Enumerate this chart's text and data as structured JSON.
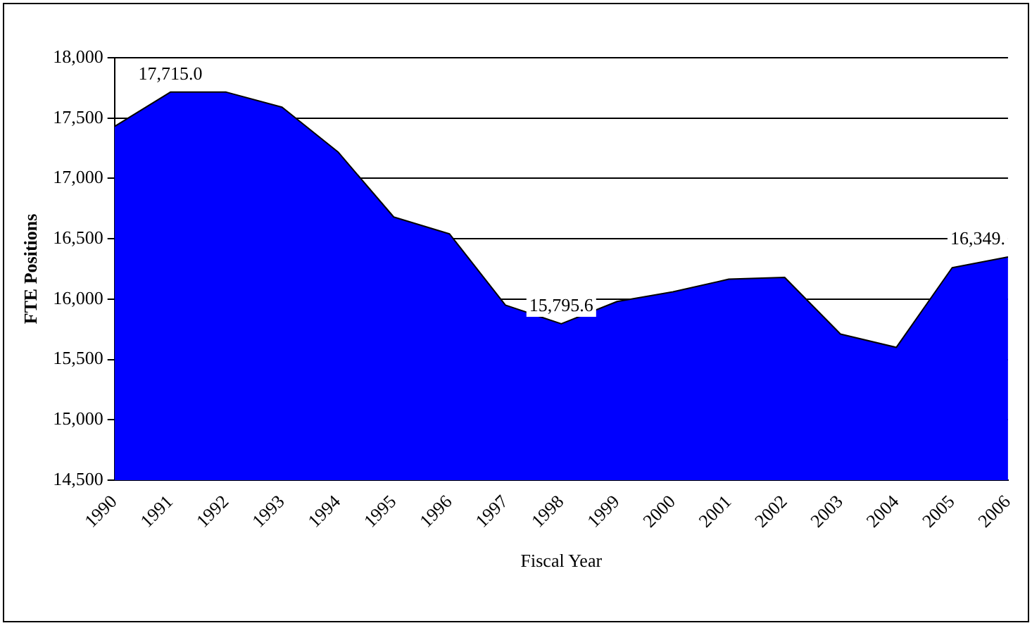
{
  "chart_data": {
    "type": "area",
    "xlabel": "Fiscal Year",
    "ylabel": "FTE Positions",
    "categories": [
      "1990",
      "1991",
      "1992",
      "1993",
      "1994",
      "1995",
      "1996",
      "1997",
      "1998",
      "1999",
      "2000",
      "2001",
      "2002",
      "2003",
      "2004",
      "2005",
      "2006"
    ],
    "series": [
      {
        "color": "#0000ff",
        "values": [
          17430,
          17715,
          17715,
          17590,
          17220,
          16680,
          16540,
          15950,
          15795.6,
          15980,
          16060,
          16165,
          16180,
          15710,
          15600,
          16260,
          16349
        ],
        "value_labels": [
          null,
          "17,715.0",
          null,
          null,
          null,
          null,
          null,
          null,
          "15,795.6",
          null,
          null,
          null,
          null,
          null,
          null,
          null,
          "16,349."
        ]
      }
    ],
    "ylim": [
      14500,
      18000
    ],
    "yticks": [
      {
        "value": 14500,
        "label": "14,500"
      },
      {
        "value": 15000,
        "label": "15,000"
      },
      {
        "value": 15500,
        "label": "15,500"
      },
      {
        "value": 16000,
        "label": "16,000"
      },
      {
        "value": 16500,
        "label": "16,500"
      },
      {
        "value": 17000,
        "label": "17,000"
      },
      {
        "value": 17500,
        "label": "17,500"
      },
      {
        "value": 18000,
        "label": "18,000"
      }
    ],
    "grid": "y",
    "legend": false
  }
}
